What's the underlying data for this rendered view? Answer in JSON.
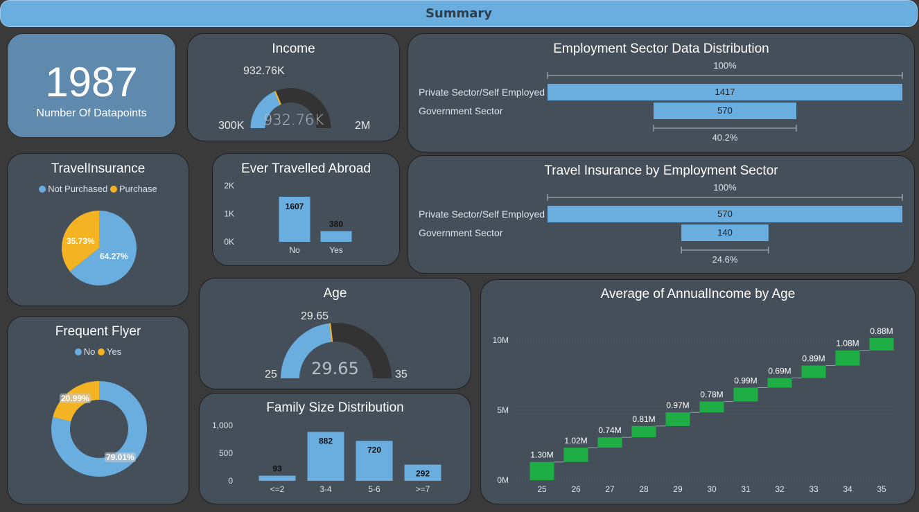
{
  "header": {
    "title": "Summary"
  },
  "kpi": {
    "value": "1987",
    "label": "Number Of Datapoints"
  },
  "income_gauge": {
    "title": "Income",
    "value_label": "932.76K",
    "center_label": "932.76K",
    "min_label": "300K",
    "max_label": "2M",
    "min": 300000,
    "max": 2000000,
    "value": 932760
  },
  "age_gauge": {
    "title": "Age",
    "value_label": "29.65",
    "center_label": "29.65",
    "min_label": "25",
    "max_label": "35",
    "min": 25,
    "max": 35,
    "value": 29.65
  },
  "employment_funnel": {
    "title": "Employment Sector Data Distribution",
    "top_pct": "100%",
    "bottom_pct": "40.2%",
    "rows": [
      {
        "label": "Private Sector/Self Employed",
        "value_label": "1417",
        "value": 1417
      },
      {
        "label": "Government Sector",
        "value_label": "570",
        "value": 570
      }
    ]
  },
  "insurance_funnel": {
    "title": "Travel Insurance by Employment Sector",
    "top_pct": "100%",
    "bottom_pct": "24.6%",
    "rows": [
      {
        "label": "Private Sector/Self Employed",
        "value_label": "570",
        "value": 570
      },
      {
        "label": "Government Sector",
        "value_label": "140",
        "value": 140
      }
    ]
  },
  "travel_insurance_pie": {
    "title": "TravelInsurance",
    "legend": [
      {
        "label": "Not Purchased",
        "color": "#6aaee0"
      },
      {
        "label": "Purchase",
        "color": "#f4b323"
      }
    ],
    "slices": [
      {
        "label": "64.27%",
        "value": 64.27,
        "color": "#6aaee0"
      },
      {
        "label": "35.73%",
        "value": 35.73,
        "color": "#f4b323"
      }
    ]
  },
  "frequent_flyer_donut": {
    "title": "Frequent Flyer",
    "legend": [
      {
        "label": "No",
        "color": "#6aaee0"
      },
      {
        "label": "Yes",
        "color": "#f4b323"
      }
    ],
    "slices": [
      {
        "label": "79.01%",
        "value": 79.01,
        "color": "#6aaee0"
      },
      {
        "label": "20.99%",
        "value": 20.99,
        "color": "#f4b323"
      }
    ]
  },
  "chart_data": [
    {
      "id": "ever_travelled",
      "type": "bar",
      "title": "Ever Travelled Abroad",
      "categories": [
        "No",
        "Yes"
      ],
      "values": [
        1607,
        380
      ],
      "value_labels": [
        "1607",
        "380"
      ],
      "yticks": [
        "0K",
        "1K",
        "2K"
      ],
      "ylim": [
        0,
        2000
      ],
      "color": "#6aaee0"
    },
    {
      "id": "family_size",
      "type": "bar",
      "title": "Family Size Distribution",
      "categories": [
        "<=2",
        "3-4",
        "5-6",
        ">=7"
      ],
      "values": [
        93,
        882,
        720,
        292
      ],
      "value_labels": [
        "93",
        "882",
        "720",
        "292"
      ],
      "yticks": [
        "0",
        "500",
        "1,000"
      ],
      "ylim": [
        0,
        1000
      ],
      "color": "#6aaee0"
    },
    {
      "id": "income_by_age",
      "type": "waterfall",
      "title": "Average of AnnualIncome by Age",
      "categories": [
        "25",
        "26",
        "27",
        "28",
        "29",
        "30",
        "31",
        "32",
        "33",
        "34",
        "35"
      ],
      "values": [
        1.3,
        1.02,
        0.74,
        0.81,
        0.97,
        0.78,
        0.99,
        0.69,
        0.89,
        1.08,
        0.88
      ],
      "value_labels": [
        "1.30M",
        "1.02M",
        "0.74M",
        "0.81M",
        "0.97M",
        "0.78M",
        "0.99M",
        "0.69M",
        "0.89M",
        "1.08M",
        "0.88M"
      ],
      "yticks": [
        "0M",
        "5M",
        "10M"
      ],
      "ylim": [
        0,
        10
      ],
      "color": "#1fae45"
    }
  ]
}
